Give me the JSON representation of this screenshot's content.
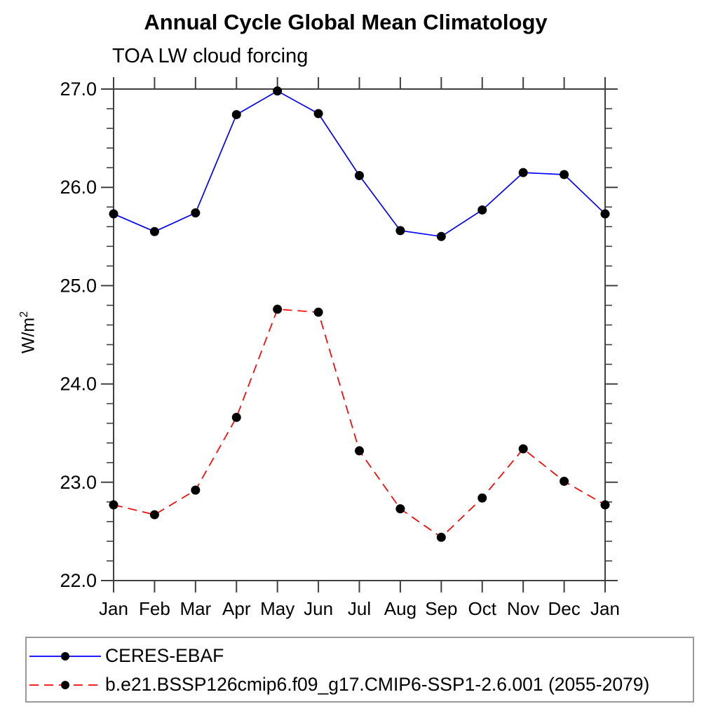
{
  "chart": {
    "title": "Annual Cycle Global Mean Climatology",
    "subtitle": "TOA LW cloud forcing",
    "ylabel_base": "W/m",
    "ylabel_exp": "2"
  },
  "chart_data": {
    "type": "line",
    "title": "Annual Cycle Global Mean Climatology",
    "subtitle": "TOA LW cloud forcing",
    "ylabel": "W/m2",
    "x_categories": [
      "Jan",
      "Feb",
      "Mar",
      "Apr",
      "May",
      "Jun",
      "Jul",
      "Aug",
      "Sep",
      "Oct",
      "Nov",
      "Dec",
      "Jan"
    ],
    "ylim": [
      22.0,
      27.0
    ],
    "y_major_step": 1.0,
    "y_minor_step": 0.2,
    "y_tick_labels": [
      "22.0",
      "23.0",
      "24.0",
      "25.0",
      "26.0",
      "27.0"
    ],
    "grid": false,
    "legend_position": "bottom",
    "series": [
      {
        "name": "CERES-EBAF",
        "color": "#0000ff",
        "line_style": "solid",
        "marker": "filled-circle",
        "marker_color": "#000000",
        "values": [
          25.73,
          25.55,
          25.74,
          26.74,
          26.98,
          26.75,
          26.12,
          25.56,
          25.5,
          25.77,
          26.15,
          26.13,
          25.73
        ]
      },
      {
        "name": "b.e21.BSSP126cmip6.f09_g17.CMIP6-SSP1-2.6.001 (2055-2079)",
        "color": "#ff0000",
        "line_style": "dashed",
        "marker": "filled-circle",
        "marker_color": "#000000",
        "values": [
          22.77,
          22.67,
          22.92,
          23.66,
          24.76,
          24.73,
          23.32,
          22.73,
          22.44,
          22.84,
          23.34,
          23.01,
          22.77
        ]
      }
    ]
  }
}
